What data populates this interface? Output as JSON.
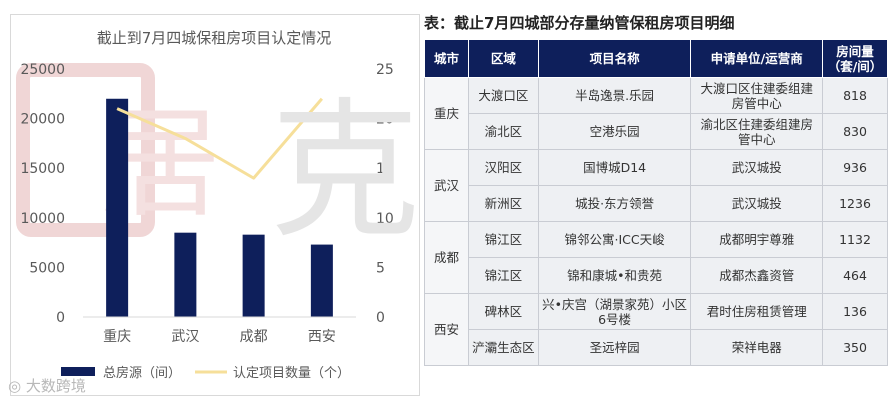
{
  "chart_data": {
    "type": "bar",
    "title": "截止到7月四城保租房项目认定情况",
    "categories": [
      "重庆",
      "武汉",
      "成都",
      "西安"
    ],
    "series": [
      {
        "name": "总房源（间）",
        "type": "bar",
        "axis": "left",
        "values": [
          22000,
          8500,
          8300,
          7300
        ],
        "color": "#0e1f5b"
      },
      {
        "name": "认定项目数量（个）",
        "type": "line",
        "axis": "right",
        "values": [
          21,
          18,
          14,
          22
        ],
        "color": "#f6df9a"
      }
    ],
    "y_left": {
      "min": 0,
      "max": 25000,
      "ticks": [
        "0",
        "5000",
        "10000",
        "15000",
        "20000",
        "25000"
      ]
    },
    "y_right": {
      "min": 0,
      "max": 25,
      "ticks": [
        "0",
        "5",
        "10",
        "15",
        "20",
        "25"
      ]
    },
    "legend_position": "bottom"
  },
  "table": {
    "title": "表：截止7月四城部分存量纳管保租房项目明细",
    "headers": [
      "城市",
      "区域",
      "项目名称",
      "申请单位/运营商",
      "房间量（套/间）"
    ],
    "groups": [
      {
        "city": "重庆",
        "rows": [
          {
            "district": "大渡口区",
            "project": "半岛逸景.乐园",
            "operator": "大渡口区住建委组建房管中心",
            "rooms": "818"
          },
          {
            "district": "渝北区",
            "project": "空港乐园",
            "operator": "渝北区住建委组建房管中心",
            "rooms": "830"
          }
        ]
      },
      {
        "city": "武汉",
        "rows": [
          {
            "district": "汉阳区",
            "project": "国博城D14",
            "operator": "武汉城投",
            "rooms": "936"
          },
          {
            "district": "新洲区",
            "project": "城投·东方领誉",
            "operator": "武汉城投",
            "rooms": "1236"
          }
        ]
      },
      {
        "city": "成都",
        "rows": [
          {
            "district": "锦江区",
            "project": "锦邻公寓·ICC天峻",
            "operator": "成都明宇尊雅",
            "rooms": "1132"
          },
          {
            "district": "锦江区",
            "project": "锦和康城•和贵苑",
            "operator": "成都杰鑫资管",
            "rooms": "464"
          }
        ]
      },
      {
        "city": "西安",
        "rows": [
          {
            "district": "碑林区",
            "project": "兴•庆宫（湖景家苑）小区6号楼",
            "operator": "君时住房租赁管理",
            "rooms": "136"
          },
          {
            "district": "浐灞生态区",
            "project": "圣远梓园",
            "operator": "荣祥电器",
            "rooms": "350"
          }
        ]
      }
    ]
  },
  "watermark": {
    "text": "克而瑞",
    "logo_text": "大数跨境"
  }
}
